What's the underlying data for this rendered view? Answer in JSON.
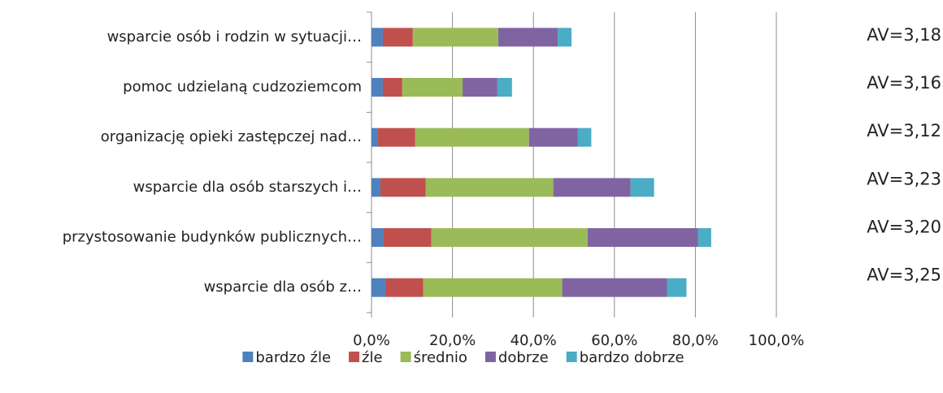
{
  "chart_data": {
    "type": "stacked_barh",
    "categories": [
      "wsparcie osób i rodzin w sytuacji…",
      "pomoc udzielaną cudzoziemcom",
      "organizację opieki zastępczej nad…",
      "wsparcie dla osób starszych i…",
      "przystosowanie budynków publicznych…",
      "wsparcie dla osób z…"
    ],
    "series": [
      {
        "name": "bardzo źle",
        "color": "#4f81bd",
        "values": [
          2.8,
          2.8,
          1.6,
          2.2,
          3.0,
          3.4
        ]
      },
      {
        "name": "źle",
        "color": "#c0504d",
        "values": [
          7.4,
          4.8,
          9.2,
          11.2,
          11.8,
          9.4
        ]
      },
      {
        "name": "średnio",
        "color": "#9bbb59",
        "values": [
          21.1,
          14.9,
          28.1,
          31.5,
          38.6,
          34.3
        ]
      },
      {
        "name": "dobrze",
        "color": "#8064a2",
        "values": [
          14.7,
          8.6,
          12.0,
          19.1,
          27.3,
          25.9
        ]
      },
      {
        "name": "bardzo dobrze",
        "color": "#4bacc6",
        "values": [
          3.4,
          3.6,
          3.4,
          5.8,
          3.2,
          4.8
        ]
      }
    ],
    "annotations": [
      "AV=3,18",
      "AV=3,16",
      "AV=3,12",
      "AV=3,23",
      "AV=3,20",
      "AV=3,25"
    ],
    "xlim": [
      0,
      100
    ],
    "xticks": [
      {
        "value": 0,
        "label": "0,0%"
      },
      {
        "value": 20,
        "label": "20,0%"
      },
      {
        "value": 40,
        "label": "40,0%"
      },
      {
        "value": 60,
        "label": "60,0%"
      },
      {
        "value": 80,
        "label": "80,0%"
      },
      {
        "value": 100,
        "label": "100,0%"
      }
    ],
    "grid": true,
    "legend": "bottom"
  }
}
